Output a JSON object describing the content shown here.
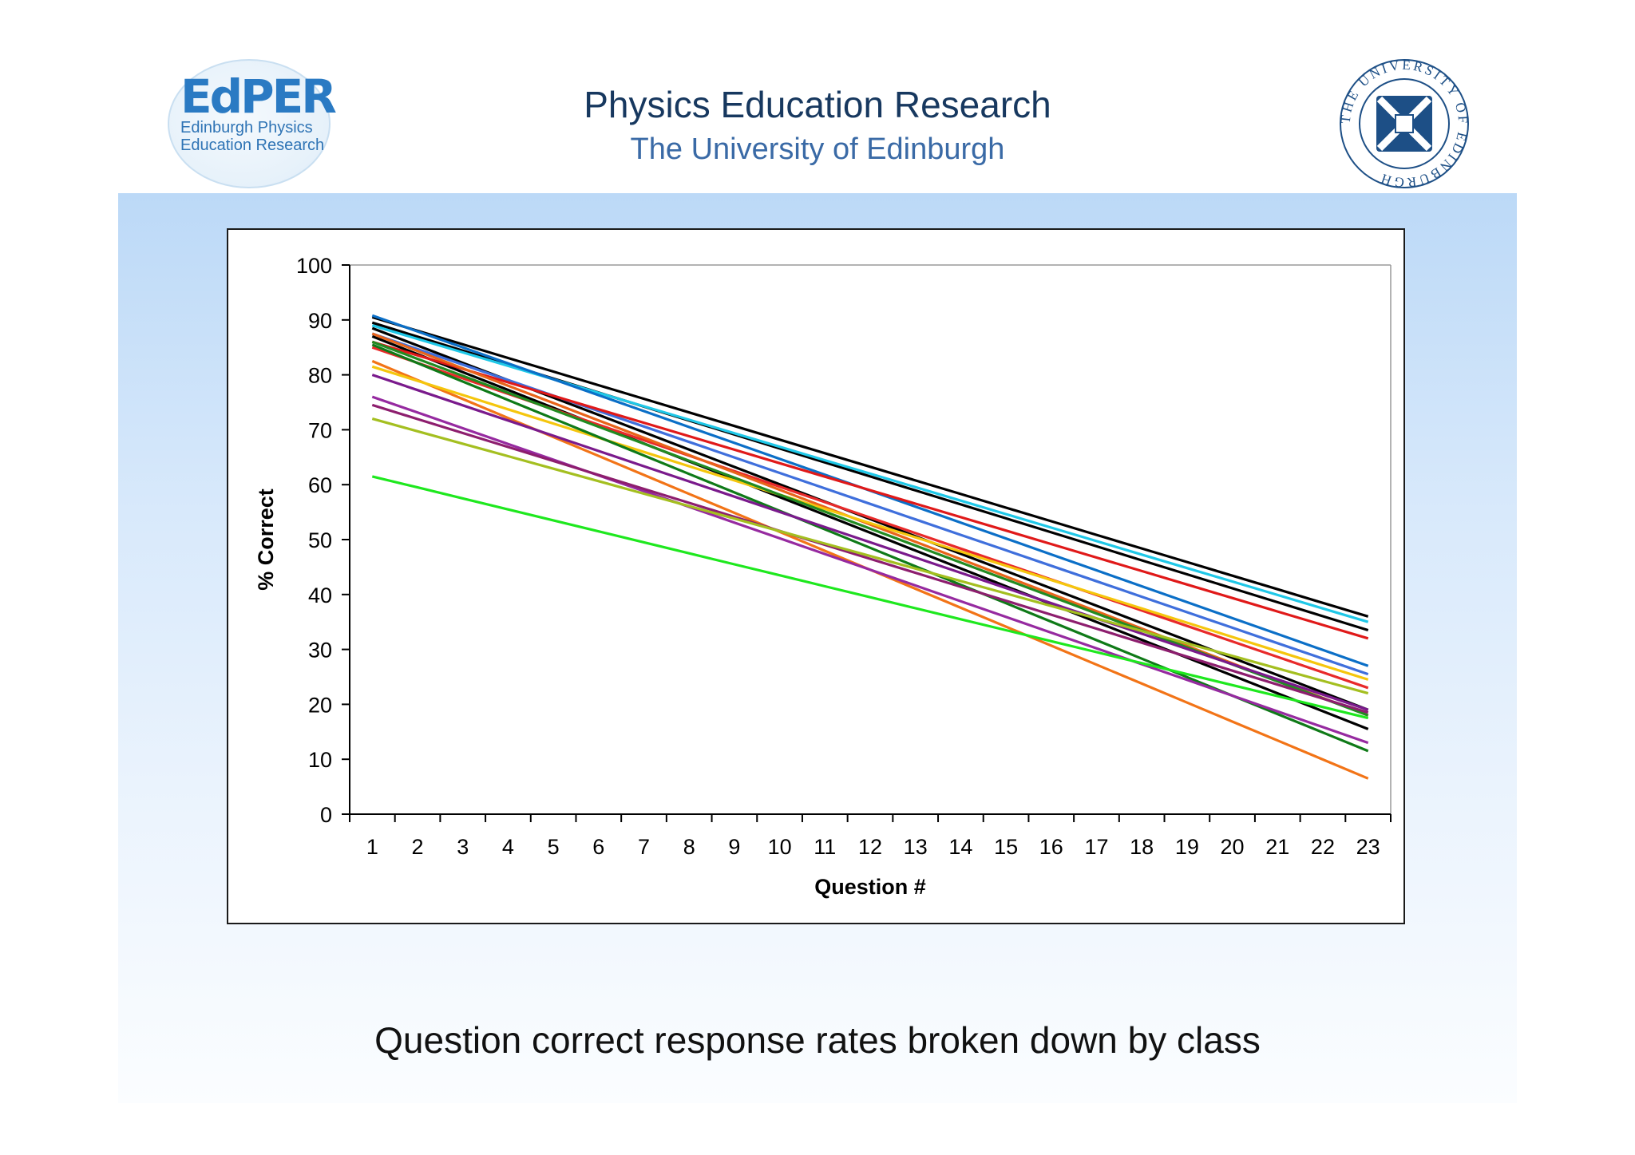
{
  "header": {
    "logo_text": "EdPER",
    "logo_sub1": "Edinburgh Physics",
    "logo_sub2": "Education Research",
    "title": "Physics Education Research",
    "subtitle": "The University of Edinburgh",
    "seal_text": "THE UNIVERSITY OF EDINBURGH"
  },
  "caption": "Question correct response rates broken down by class",
  "chart_data": {
    "type": "line",
    "xlabel": "Question #",
    "ylabel": "% Correct",
    "ylim": [
      0,
      100
    ],
    "yticks": [
      0,
      10,
      20,
      30,
      40,
      50,
      60,
      70,
      80,
      90,
      100
    ],
    "x": [
      1,
      2,
      3,
      4,
      5,
      6,
      7,
      8,
      9,
      10,
      11,
      12,
      13,
      14,
      15,
      16,
      17,
      18,
      19,
      20,
      21,
      22,
      23
    ],
    "grid": false,
    "legend": "none",
    "series": [
      {
        "color": "#000000",
        "start": 90.5,
        "end": 36
      },
      {
        "color": "#000000",
        "start": 89.5,
        "end": 33.5
      },
      {
        "color": "#000000",
        "start": 88.5,
        "end": 19
      },
      {
        "color": "#000000",
        "start": 87,
        "end": 15.5
      },
      {
        "color": "#1fc8e8",
        "start": 89,
        "end": 35
      },
      {
        "color": "#0b6fc7",
        "start": 90.8,
        "end": 27
      },
      {
        "color": "#3f6fdc",
        "start": 87.5,
        "end": 25.5
      },
      {
        "color": "#e01919",
        "start": 86,
        "end": 32
      },
      {
        "color": "#e82a2a",
        "start": 85,
        "end": 23
      },
      {
        "color": "#e8641a",
        "start": 87.5,
        "end": 18
      },
      {
        "color": "#f27417",
        "start": 82.5,
        "end": 6.5
      },
      {
        "color": "#f5c60d",
        "start": 81.5,
        "end": 24.5
      },
      {
        "color": "#228b22",
        "start": 86,
        "end": 18
      },
      {
        "color": "#0f7a18",
        "start": 85.5,
        "end": 11.5
      },
      {
        "color": "#7a1a8c",
        "start": 80,
        "end": 19
      },
      {
        "color": "#962aa0",
        "start": 76,
        "end": 13
      },
      {
        "color": "#8d1e6e",
        "start": 74.5,
        "end": 18.5
      },
      {
        "color": "#a4bf20",
        "start": 72,
        "end": 22
      },
      {
        "color": "#1ee81e",
        "start": 61.5,
        "end": 17.5
      }
    ]
  }
}
